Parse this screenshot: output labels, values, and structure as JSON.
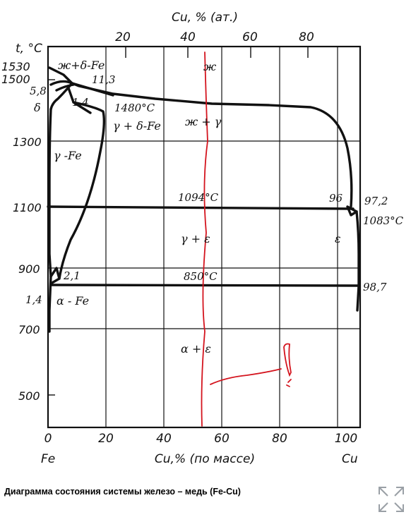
{
  "diagram": {
    "top_axis": {
      "label": "Cu, % (ат.)",
      "ticks": [
        "20",
        "40",
        "60",
        "80"
      ]
    },
    "left_axis": {
      "label": "t, °C",
      "ticks": [
        "1530",
        "1500",
        "1300",
        "1100",
        "900",
        "700",
        "500"
      ]
    },
    "bottom_axis": {
      "label": "Cu,% (по массе)",
      "ticks": [
        "0",
        "20",
        "40",
        "60",
        "80",
        "100"
      ],
      "left_end": "Fe",
      "right_end": "Cu"
    },
    "phase_labels": {
      "liquid": "ж",
      "liquid_delta": "ж+δ-Fe",
      "liquid_gamma": "ж + γ",
      "delta": "δ",
      "gamma_delta": "γ + δ-Fe",
      "gamma": "γ -Fe",
      "gamma_eps": "γ + ε",
      "alpha": "α - Fe",
      "alpha_eps": "α + ε",
      "eps": "ε"
    },
    "point_labels": {
      "p113": "11,3",
      "p58": "5,8",
      "p14a": "1,4",
      "t1480": "1480°C",
      "t1094": "1094°C",
      "p96": "96",
      "p972": "97,2",
      "t1083": "1083°C",
      "t850": "850°C",
      "p21": "2,1",
      "p14b": "1,4",
      "p987": "98,7"
    }
  },
  "caption": "Диаграмма состояния системы железо – медь (Fe-Cu)",
  "icons": {
    "expand": "expand-icon"
  }
}
